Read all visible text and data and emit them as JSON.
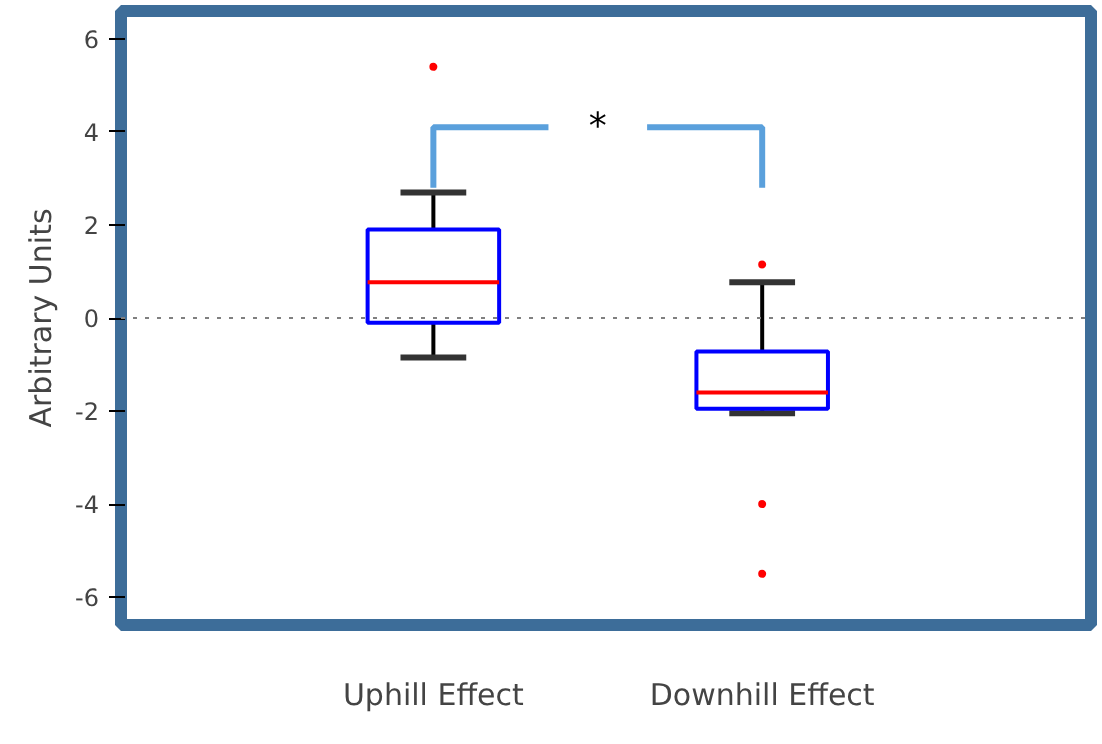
{
  "chart_data": {
    "type": "box",
    "ylabel": "Arbitrary Units",
    "categories": [
      "Uphill Effect",
      "Downhill Effect"
    ],
    "boxes": [
      {
        "low": -0.85,
        "q1": -0.1,
        "median": 0.77,
        "q3": 1.9,
        "high": 2.7,
        "outliers": [
          5.4
        ]
      },
      {
        "low": -2.05,
        "q1": -1.95,
        "median": -1.6,
        "q3": -0.72,
        "high": 0.77,
        "outliers": [
          1.15,
          -4.0,
          -5.5
        ]
      }
    ],
    "ylim": [
      -6.6,
      6.6
    ],
    "yticks": [
      -6,
      -4,
      -2,
      0,
      2,
      4,
      6
    ],
    "grid": false,
    "ref_lines": [
      {
        "axis": "y",
        "value": 0,
        "color": "#808080",
        "line_style": "dotted"
      }
    ],
    "annotations": [
      {
        "text": "*",
        "x": "Uphill Effect",
        "y": 2.7
      }
    ]
  }
}
